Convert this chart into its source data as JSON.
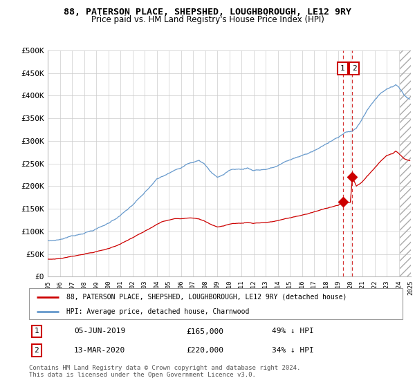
{
  "title": "88, PATERSON PLACE, SHEPSHED, LOUGHBOROUGH, LE12 9RY",
  "subtitle": "Price paid vs. HM Land Registry's House Price Index (HPI)",
  "legend_label_red": "88, PATERSON PLACE, SHEPSHED, LOUGHBOROUGH, LE12 9RY (detached house)",
  "legend_label_blue": "HPI: Average price, detached house, Charnwood",
  "footer": "Contains HM Land Registry data © Crown copyright and database right 2024.\nThis data is licensed under the Open Government Licence v3.0.",
  "transaction1_date": "05-JUN-2019",
  "transaction1_price": "£165,000",
  "transaction1_hpi": "49% ↓ HPI",
  "transaction2_date": "13-MAR-2020",
  "transaction2_price": "£220,000",
  "transaction2_hpi": "34% ↓ HPI",
  "red_color": "#cc0000",
  "blue_color": "#6699cc",
  "grid_color": "#cccccc",
  "ylim": [
    0,
    500000
  ],
  "yticks": [
    0,
    50000,
    100000,
    150000,
    200000,
    250000,
    300000,
    350000,
    400000,
    450000,
    500000
  ],
  "ytick_labels": [
    "£0",
    "£50K",
    "£100K",
    "£150K",
    "£200K",
    "£250K",
    "£300K",
    "£350K",
    "£400K",
    "£450K",
    "£500K"
  ],
  "vline1_x": 2019.42,
  "vline2_x": 2020.17,
  "dot1_x": 2019.42,
  "dot1_y": 165000,
  "dot2_x": 2020.17,
  "dot2_y": 220000,
  "xmin": 1995.0,
  "xmax": 2025.0,
  "hatch_start": 2024.08,
  "hatch_end": 2025.0
}
